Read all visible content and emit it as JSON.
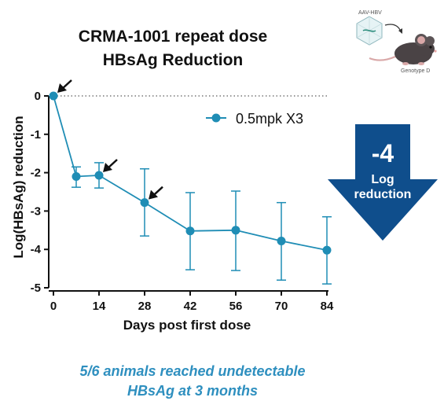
{
  "title": {
    "line1": "CRMA-1001 repeat dose",
    "line2": "HBsAg Reduction"
  },
  "illustration": {
    "vector_label": "AAV-HBV",
    "mouse_label": "Genotype D",
    "icon": "mouse-with-virus-icon"
  },
  "chart_data": {
    "type": "line",
    "xlabel": "Days post first dose",
    "ylabel": "Log(HBsAg) reduction",
    "xlim": [
      0,
      84
    ],
    "ylim": [
      -5,
      0
    ],
    "xticks": [
      0,
      14,
      28,
      42,
      56,
      70,
      84
    ],
    "yticks": [
      0,
      -1,
      -2,
      -3,
      -4,
      -5
    ],
    "reference_line": {
      "y": 0,
      "style": "dotted"
    },
    "series": [
      {
        "name": "0.5mpk X3",
        "color": "#1f8db5",
        "x": [
          0,
          7,
          14,
          28,
          42,
          56,
          70,
          84
        ],
        "y": [
          0,
          -2.1,
          -2.07,
          -2.78,
          -3.52,
          -3.5,
          -3.78,
          -4.02
        ],
        "error_low": [
          0,
          -2.38,
          -2.4,
          -3.65,
          -4.53,
          -4.55,
          -4.8,
          -4.9
        ],
        "error_high": [
          0,
          -1.85,
          -1.74,
          -1.9,
          -2.52,
          -2.48,
          -2.78,
          -3.15
        ]
      }
    ],
    "dose_arrows_at_days": [
      0,
      14,
      28
    ],
    "legend_position": "top-right"
  },
  "callout": {
    "big": "-4",
    "line1": "Log",
    "line2": "reduction",
    "color": "#0f4e8c"
  },
  "caption": {
    "line1": "5/6 animals reached undetectable",
    "line2": "HBsAg at 3 months",
    "color": "#2e8fbf"
  }
}
